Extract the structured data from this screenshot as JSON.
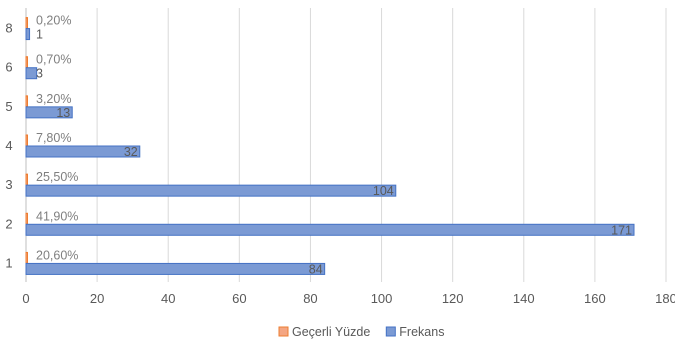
{
  "chart_data": {
    "type": "bar",
    "orientation": "horizontal",
    "categories": [
      "1",
      "2",
      "3",
      "4",
      "5",
      "6",
      "8"
    ],
    "series": [
      {
        "name": "Frekans",
        "color": "#4472c4",
        "fill": "#7b9ad4",
        "values": [
          84,
          171,
          104,
          32,
          13,
          3,
          1
        ],
        "labels": [
          "84",
          "171",
          "104",
          "32",
          "13",
          "3",
          "1"
        ]
      },
      {
        "name": "Geçerli Yüzde",
        "color": "#ed7d31",
        "fill": "#f4a683",
        "values": [
          0.206,
          0.419,
          0.255,
          0.078,
          0.032,
          0.007,
          0.002
        ],
        "labels": [
          "20,60%",
          "41,90%",
          "25,50%",
          "7,80%",
          "3,20%",
          "0,70%",
          "0,20%"
        ]
      }
    ],
    "xlim": [
      0,
      180
    ],
    "xticks": [
      "0",
      "20",
      "40",
      "60",
      "80",
      "100",
      "120",
      "140",
      "160",
      "180"
    ],
    "grid": "vertical",
    "legend_position": "bottom",
    "title": "",
    "xlabel": "",
    "ylabel": ""
  }
}
